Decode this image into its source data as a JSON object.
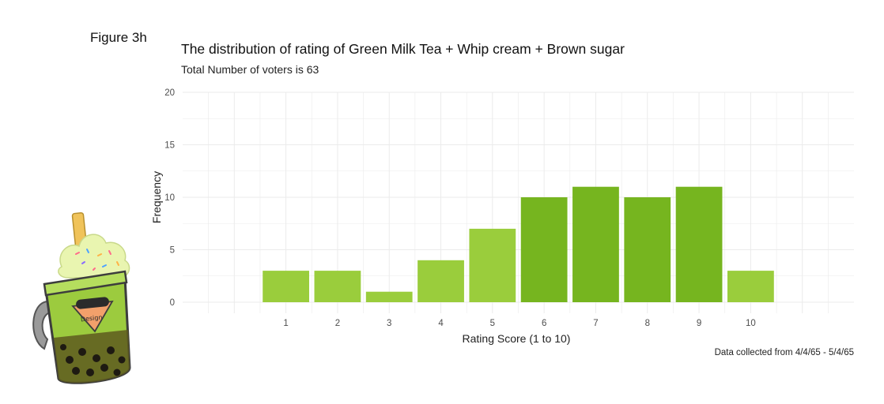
{
  "figure_label": "Figure 3h",
  "caption": "Data collected from 4/4/65 - 5/4/65",
  "colors": {
    "bar_light": "#9ACD3C",
    "bar_dark": "#76B51F",
    "grid": "#EBEBEB",
    "text": "#4D4D4D"
  },
  "mascot": {
    "icon": "bubble-tea-cup-icon",
    "label": "Design"
  },
  "chart_data": {
    "type": "bar",
    "title": "The distribution of rating of Green Milk Tea + Whip cream + Brown sugar",
    "subtitle": "Total Number of voters is 63",
    "xlabel": "Rating Score (1 to 10)",
    "ylabel": "Frequency",
    "categories": [
      "1",
      "2",
      "3",
      "4",
      "5",
      "6",
      "7",
      "8",
      "9",
      "10"
    ],
    "values": [
      3,
      3,
      1,
      4,
      7,
      10,
      11,
      10,
      11,
      3
    ],
    "xlim": [
      -1,
      12
    ],
    "ylim": [
      0,
      20
    ],
    "yticks": [
      0,
      5,
      10,
      15,
      20
    ],
    "grid": true,
    "legend": "none"
  }
}
